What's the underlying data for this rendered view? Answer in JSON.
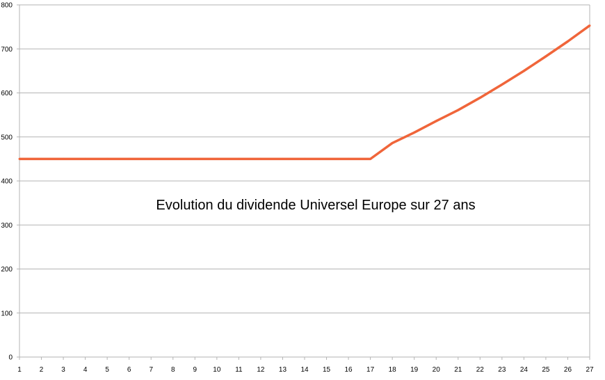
{
  "chart_data": {
    "type": "line",
    "title": "Evolution du dividende Universel Europe sur 27 ans",
    "xlabel": "",
    "ylabel": "",
    "x": [
      1,
      2,
      3,
      4,
      5,
      6,
      7,
      8,
      9,
      10,
      11,
      12,
      13,
      14,
      15,
      16,
      17,
      18,
      19,
      20,
      21,
      22,
      23,
      24,
      25,
      26,
      27
    ],
    "series": [
      {
        "values": [
          450,
          450,
          450,
          450,
          450,
          450,
          450,
          450,
          450,
          450,
          450,
          450,
          450,
          450,
          450,
          450,
          450,
          486,
          510,
          536,
          561,
          589,
          619,
          650,
          683,
          717,
          753
        ]
      }
    ],
    "ylim": [
      0,
      800
    ],
    "yticks": [
      0,
      100,
      200,
      300,
      400,
      500,
      600,
      700,
      800
    ],
    "grid": true,
    "legend": "none",
    "colors": {
      "line": "#F0653A",
      "grid": "#B3B3B3",
      "axis": "#B3B3B3"
    }
  }
}
